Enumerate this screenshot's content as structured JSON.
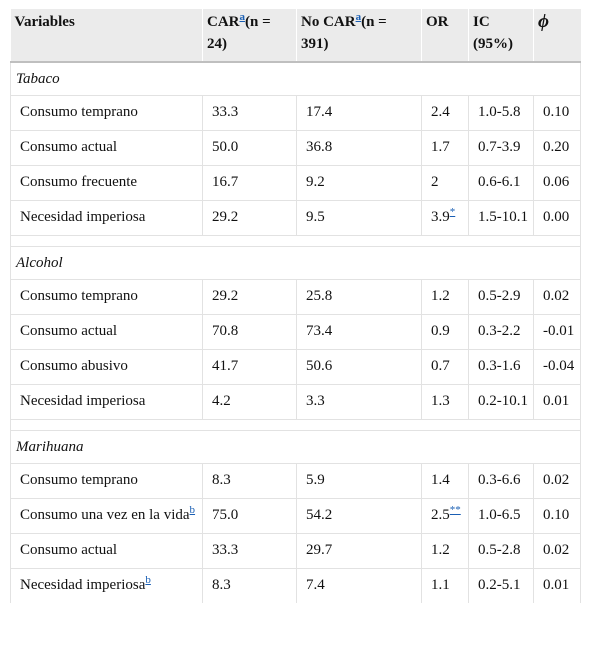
{
  "header": {
    "variables": "Variables",
    "car_label": "CAR",
    "car_ref": "a",
    "car_n": "(n = 24)",
    "nocar_label": "No CAR",
    "nocar_ref": "a",
    "nocar_n": "(n = 391)",
    "or": "OR",
    "ic": "IC (95%)",
    "phi": "ϕ"
  },
  "sections": [
    {
      "title": "Tabaco",
      "rows": [
        {
          "variable": "Consumo temprano",
          "var_ref": "",
          "car": "33.3",
          "nocar": "17.4",
          "or": "2.4",
          "or_ref": "",
          "ic": "1.0-5.8",
          "phi": "0.10"
        },
        {
          "variable": "Consumo actual",
          "var_ref": "",
          "car": "50.0",
          "nocar": "36.8",
          "or": "1.7",
          "or_ref": "",
          "ic": "0.7-3.9",
          "phi": "0.20"
        },
        {
          "variable": "Consumo frecuente",
          "var_ref": "",
          "car": "16.7",
          "nocar": "9.2",
          "or": "2",
          "or_ref": "",
          "ic": "0.6-6.1",
          "phi": "0.06"
        },
        {
          "variable": "Necesidad imperiosa",
          "var_ref": "",
          "car": "29.2",
          "nocar": "9.5",
          "or": "3.9",
          "or_ref": "*",
          "ic": "1.5-10.1",
          "phi": "0.00"
        }
      ]
    },
    {
      "title": "Alcohol",
      "rows": [
        {
          "variable": "Consumo temprano",
          "var_ref": "",
          "car": "29.2",
          "nocar": "25.8",
          "or": "1.2",
          "or_ref": "",
          "ic": "0.5-2.9",
          "phi": "0.02"
        },
        {
          "variable": "Consumo actual",
          "var_ref": "",
          "car": "70.8",
          "nocar": "73.4",
          "or": "0.9",
          "or_ref": "",
          "ic": "0.3-2.2",
          "phi": "-0.01"
        },
        {
          "variable": "Consumo abusivo",
          "var_ref": "",
          "car": "41.7",
          "nocar": "50.6",
          "or": "0.7",
          "or_ref": "",
          "ic": "0.3-1.6",
          "phi": "-0.04"
        },
        {
          "variable": "Necesidad imperiosa",
          "var_ref": "",
          "car": "4.2",
          "nocar": "3.3",
          "or": "1.3",
          "or_ref": "",
          "ic": "0.2-10.1",
          "phi": "0.01"
        }
      ]
    },
    {
      "title": "Marihuana",
      "rows": [
        {
          "variable": "Consumo temprano",
          "var_ref": "",
          "car": "8.3",
          "nocar": "5.9",
          "or": "1.4",
          "or_ref": "",
          "ic": "0.3-6.6",
          "phi": "0.02"
        },
        {
          "variable": "Consumo una vez en la vida",
          "var_ref": "b",
          "car": "75.0",
          "nocar": "54.2",
          "or": "2.5",
          "or_ref": "**",
          "ic": "1.0-6.5",
          "phi": "0.10"
        },
        {
          "variable": "Consumo actual",
          "var_ref": "",
          "car": "33.3",
          "nocar": "29.7",
          "or": "1.2",
          "or_ref": "",
          "ic": "0.5-2.8",
          "phi": "0.02"
        },
        {
          "variable": "Necesidad imperiosa",
          "var_ref": "b",
          "car": "8.3",
          "nocar": "7.4",
          "or": "1.1",
          "or_ref": "",
          "ic": "0.2-5.1",
          "phi": "0.01"
        }
      ]
    }
  ]
}
